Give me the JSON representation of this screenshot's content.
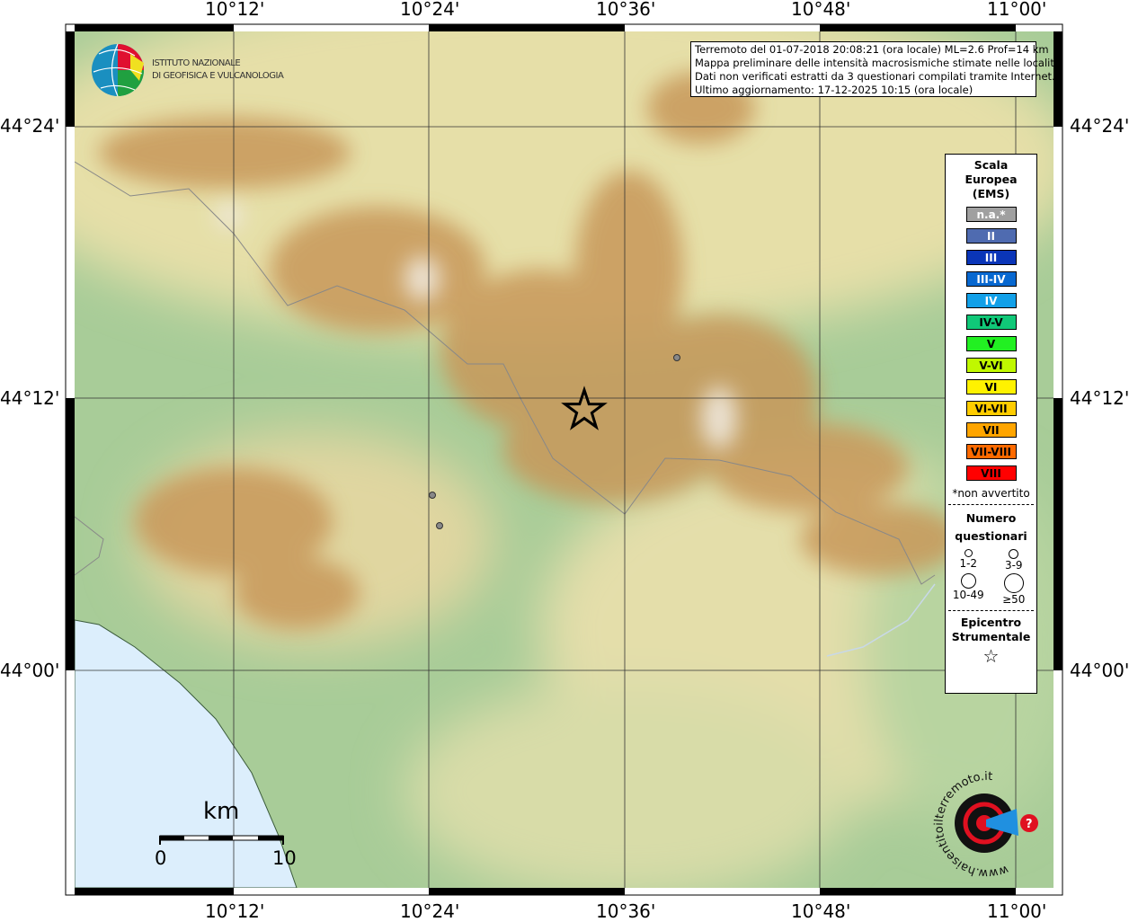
{
  "map": {
    "top_ticks": [
      "10°12'",
      "10°24'",
      "10°36'",
      "10°48'",
      "11°00'"
    ],
    "bottom_ticks": [
      "10°12'",
      "10°24'",
      "10°36'",
      "10°48'",
      "11°00'"
    ],
    "left_ticks": [
      "44°24'",
      "44°12'",
      "44°00'"
    ],
    "right_ticks": [
      "44°24'",
      "44°12'",
      "44°00'"
    ],
    "colors": {
      "sea": "#dceefc",
      "lowland": "#a8cc98",
      "hills": "#e8e2b0",
      "mountains": "#c89a5c",
      "peaks": "#f2ece4",
      "epicenter": "#000000",
      "point": "#888888"
    }
  },
  "logo": {
    "line1": "ISTITUTO NAZIONALE",
    "line2": "DI GEOFISICA E VULCANOLOGIA"
  },
  "info": {
    "line1": "Terremoto del 01-07-2018 20:08:21 (ora locale) ML=2.6 Prof=14 km",
    "line2": "Mappa preliminare delle intensità macrosismiche stimate nelle località",
    "line3": "Dati non verificati estratti da 3 questionari compilati tramite Internet.",
    "line4": "Ultimo aggiornamento: 17-12-2025 10:15 (ora locale)"
  },
  "legend": {
    "title1": "Scala",
    "title2": "Europea",
    "title3": "(EMS)",
    "scale": [
      {
        "label": "n.a.*",
        "color": "#a0a0a0",
        "text": "#ffffff"
      },
      {
        "label": "II",
        "color": "#4f6bb0",
        "text": "#ffffff"
      },
      {
        "label": "III",
        "color": "#0a35b8",
        "text": "#ffffff"
      },
      {
        "label": "III-IV",
        "color": "#0868d0",
        "text": "#ffffff"
      },
      {
        "label": "IV",
        "color": "#12a0e8",
        "text": "#ffffff"
      },
      {
        "label": "IV-V",
        "color": "#10c878",
        "text": "#000000"
      },
      {
        "label": "V",
        "color": "#22f022",
        "text": "#000000"
      },
      {
        "label": "V-VI",
        "color": "#c0f800",
        "text": "#000000"
      },
      {
        "label": "VI",
        "color": "#fff200",
        "text": "#000000"
      },
      {
        "label": "VI-VII",
        "color": "#ffcc00",
        "text": "#000000"
      },
      {
        "label": "VII",
        "color": "#ffa500",
        "text": "#000000"
      },
      {
        "label": "VII-VIII",
        "color": "#ff6a00",
        "text": "#000000"
      },
      {
        "label": "VIII",
        "color": "#ff0000",
        "text": "#000000"
      }
    ],
    "note": "*non avvertito",
    "q_title1": "Numero",
    "q_title2": "questionari",
    "q": [
      "1-2",
      "3-9",
      "10-49",
      "≥50"
    ],
    "epi1": "Epicentro",
    "epi2": "Strumentale"
  },
  "scalebar": {
    "unit": "km",
    "start": "0",
    "end": "10"
  },
  "haisentito": {
    "text": "www.haisentitoilterremoto.it"
  }
}
